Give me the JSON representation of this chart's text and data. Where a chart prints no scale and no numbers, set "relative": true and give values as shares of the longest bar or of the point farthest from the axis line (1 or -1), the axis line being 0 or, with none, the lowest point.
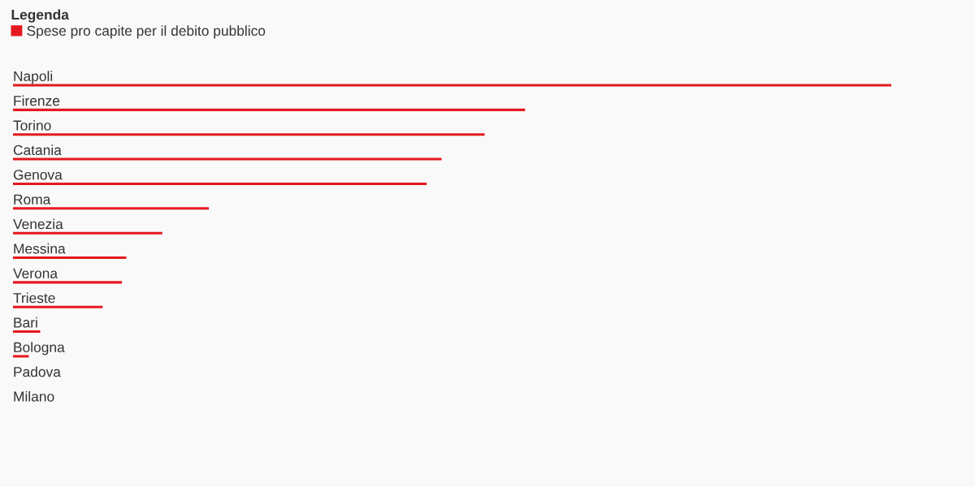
{
  "chart_data": {
    "type": "bar",
    "orientation": "horizontal",
    "relative": true,
    "legend_title": "Legenda",
    "legend": "top left",
    "categories": [
      "Napoli",
      "Firenze",
      "Torino",
      "Catania",
      "Genova",
      "Roma",
      "Venezia",
      "Messina",
      "Verona",
      "Trieste",
      "Bari",
      "Bologna",
      "Padova",
      "Milano"
    ],
    "series": [
      {
        "name": "Spese pro capite per il debito pubblico",
        "color": "#e4191f",
        "values": [
          1,
          0.583,
          0.537,
          0.488,
          0.471,
          0.223,
          0.17,
          0.129,
          0.124,
          0.102,
          0.031,
          0.018,
          0,
          0
        ]
      }
    ]
  }
}
